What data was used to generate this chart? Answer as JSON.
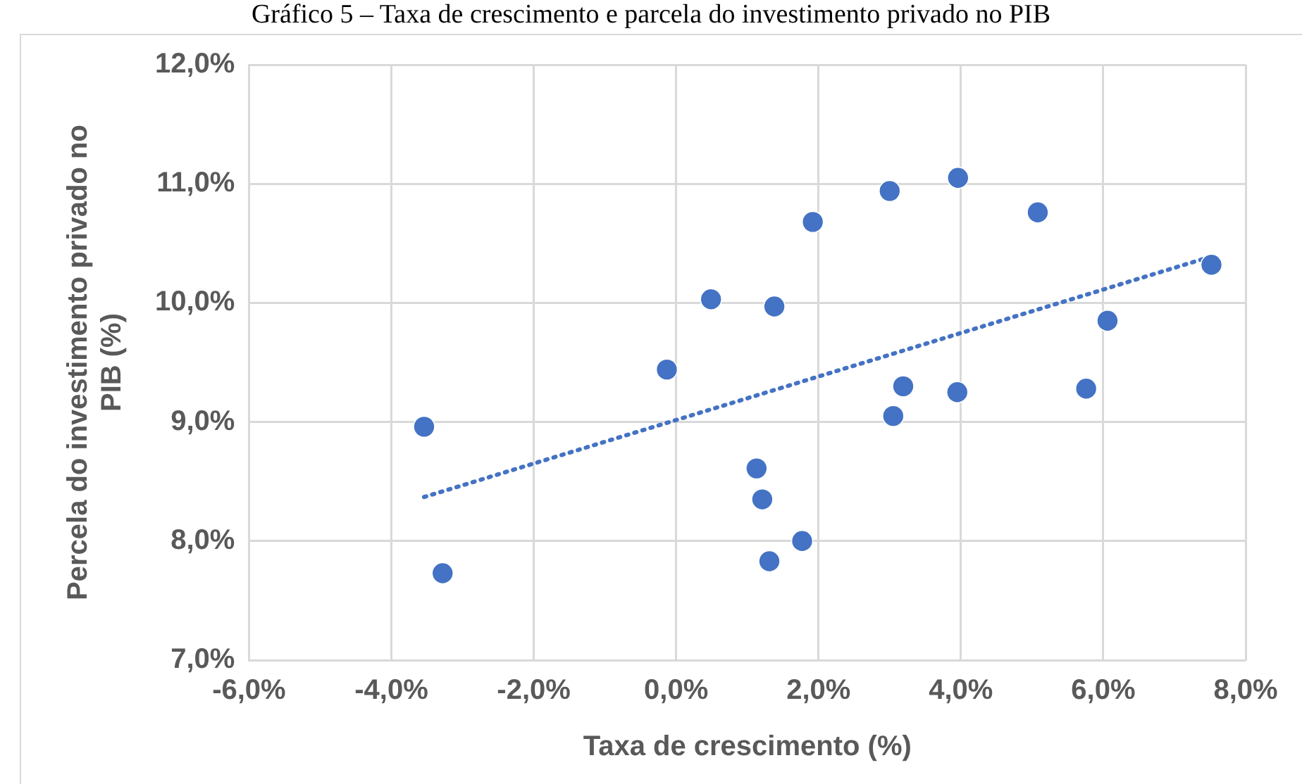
{
  "chart_data": {
    "type": "scatter",
    "title": "Gráfico 5 – Taxa de crescimento e parcela do investimento privado no PIB",
    "xlabel": "Taxa de crescimento (%)",
    "ylabel": "Percela do investimento privado no PIB (%)",
    "xlim": [
      -6,
      8
    ],
    "ylim": [
      7,
      12
    ],
    "xticks": [
      {
        "value": -6,
        "label": "-6,0%"
      },
      {
        "value": -4,
        "label": "-4,0%"
      },
      {
        "value": -2,
        "label": "-2,0%"
      },
      {
        "value": 0,
        "label": "0,0%"
      },
      {
        "value": 2,
        "label": "2,0%"
      },
      {
        "value": 4,
        "label": "4,0%"
      },
      {
        "value": 6,
        "label": "6,0%"
      },
      {
        "value": 8,
        "label": "8,0%"
      }
    ],
    "yticks": [
      {
        "value": 7,
        "label": "7,0%"
      },
      {
        "value": 8,
        "label": "8,0%"
      },
      {
        "value": 9,
        "label": "9,0%"
      },
      {
        "value": 10,
        "label": "10,0%"
      },
      {
        "value": 11,
        "label": "11,0%"
      },
      {
        "value": 12,
        "label": "12,0%"
      }
    ],
    "grid": true,
    "legend": false,
    "marker": "circle",
    "series": [
      {
        "color": "#4472c4",
        "x": [
          -3.54,
          -3.28,
          -0.13,
          0.49,
          1.38,
          1.92,
          1.13,
          1.21,
          1.77,
          1.31,
          3.0,
          3.96,
          5.08,
          7.52,
          6.06,
          3.19,
          3.95,
          5.76,
          3.05
        ],
        "values": [
          8.96,
          7.73,
          9.44,
          10.03,
          9.97,
          10.68,
          8.61,
          8.35,
          8.0,
          7.83,
          10.94,
          11.05,
          10.76,
          10.32,
          9.85,
          9.3,
          9.25,
          9.28,
          9.05
        ]
      },
      {
        "type": "line",
        "color": "#4472c4",
        "line_style": "dotted",
        "marker": "none",
        "x": [
          -3.54,
          7.52
        ],
        "values": [
          8.37,
          10.39
        ]
      }
    ]
  }
}
